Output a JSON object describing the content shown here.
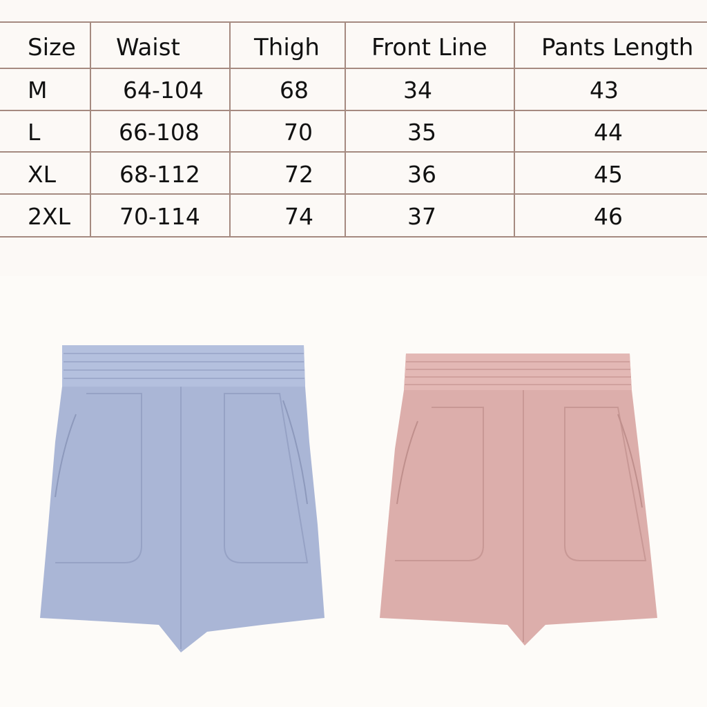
{
  "size_table": {
    "headers": [
      "Size",
      "Waist",
      "Thigh",
      "Front Line",
      "Pants Length"
    ],
    "rows": [
      [
        "M",
        "64-104",
        "68",
        "34",
        "43"
      ],
      [
        "L",
        "66-108",
        "70",
        "35",
        "44"
      ],
      [
        "XL",
        "68-112",
        "72",
        "36",
        "45"
      ],
      [
        "2XL",
        "70-114",
        "74",
        "37",
        "46"
      ]
    ]
  },
  "products": [
    {
      "color_name": "blue",
      "color": "#aab6d6"
    },
    {
      "color_name": "pink",
      "color": "#dcaeab"
    }
  ],
  "colors": {
    "table_lines": "#a58a80",
    "background": "#fdfbf8"
  }
}
